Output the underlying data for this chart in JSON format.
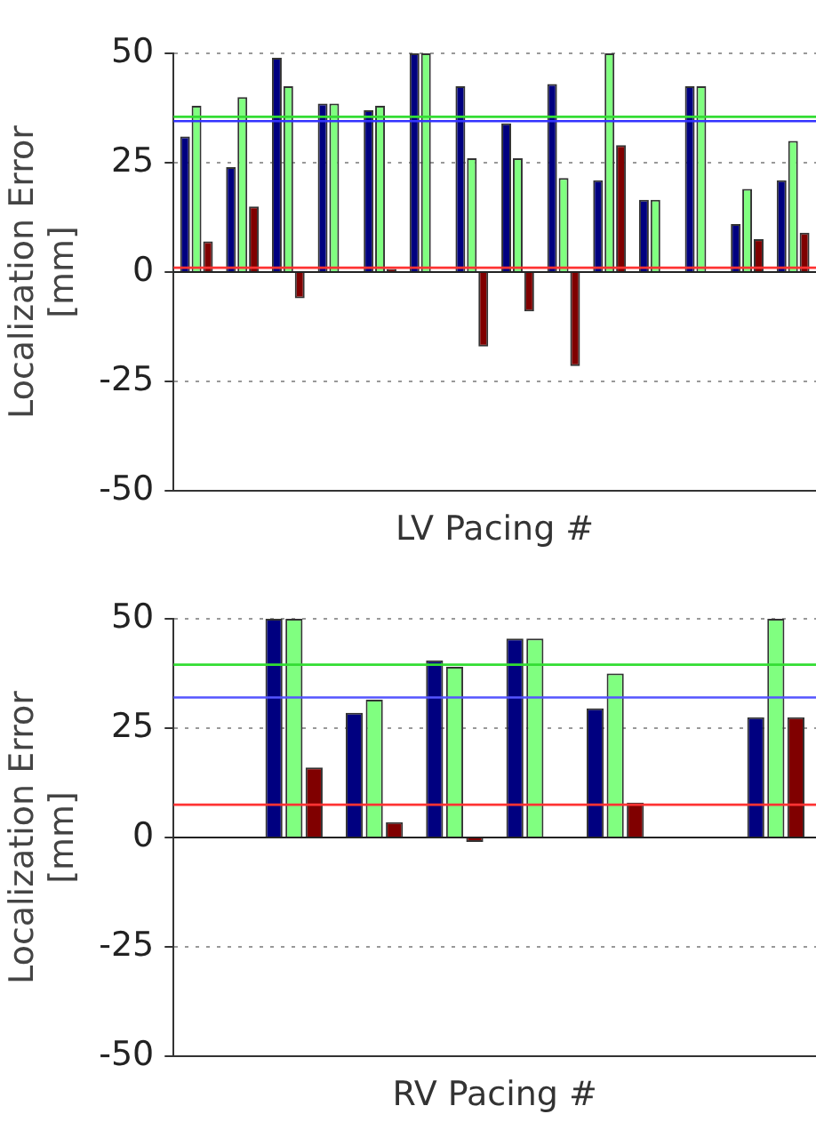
{
  "chart_data": [
    {
      "type": "bar",
      "xlabel": "LV Pacing #",
      "ylabel": "Localization Error\n[mm]",
      "categories": [
        null,
        null,
        null,
        null,
        null,
        null,
        null,
        null,
        null,
        null,
        null,
        null,
        null,
        null
      ],
      "series": [
        {
          "color": "#000080",
          "values": [
            31,
            24,
            49,
            38.5,
            37,
            50,
            42.5,
            34,
            43,
            21,
            16.5,
            42.5,
            11,
            21
          ]
        },
        {
          "color": "#80ff80",
          "values": [
            38,
            40,
            42.5,
            38.5,
            38,
            50,
            26,
            26,
            21.5,
            50,
            16.5,
            42.5,
            19,
            30
          ]
        },
        {
          "color": "#800000",
          "values": [
            7,
            15,
            -6,
            null,
            0.7,
            null,
            -17,
            -9,
            -21.5,
            29,
            null,
            null,
            7.5,
            9
          ]
        }
      ],
      "ylim": [
        -50,
        50
      ],
      "yticks": [
        -50,
        -25,
        0,
        25,
        50
      ],
      "grid": "y",
      "legend": false,
      "ref_lines": [
        {
          "axis": "y",
          "value": 35.5,
          "color": "#33dd33"
        },
        {
          "axis": "y",
          "value": 34.5,
          "color": "#3333ff"
        },
        {
          "axis": "y",
          "value": 1,
          "color": "#ff3333"
        }
      ]
    },
    {
      "type": "bar",
      "xlabel": "RV Pacing #",
      "ylabel": "Localization Error\n[mm]",
      "categories": [
        null,
        null,
        null,
        null,
        null,
        null,
        null,
        null
      ],
      "series": [
        {
          "color": "#000080",
          "values": [
            null,
            50,
            28.5,
            40.5,
            45.5,
            29.5,
            null,
            27.5
          ]
        },
        {
          "color": "#80ff80",
          "values": [
            null,
            50,
            31.5,
            39,
            45.5,
            37.5,
            null,
            50
          ]
        },
        {
          "color": "#800000",
          "values": [
            null,
            16,
            3.5,
            -1,
            null,
            8,
            null,
            27.5
          ]
        }
      ],
      "ylim": [
        -50,
        50
      ],
      "yticks": [
        -50,
        -25,
        0,
        25,
        50
      ],
      "grid": "y",
      "legend": false,
      "ref_lines": [
        {
          "axis": "y",
          "value": 39.5,
          "color": "#33dd33"
        },
        {
          "axis": "y",
          "value": 32,
          "color": "#5555ff"
        },
        {
          "axis": "y",
          "value": 7.5,
          "color": "#ff3333"
        }
      ]
    }
  ]
}
